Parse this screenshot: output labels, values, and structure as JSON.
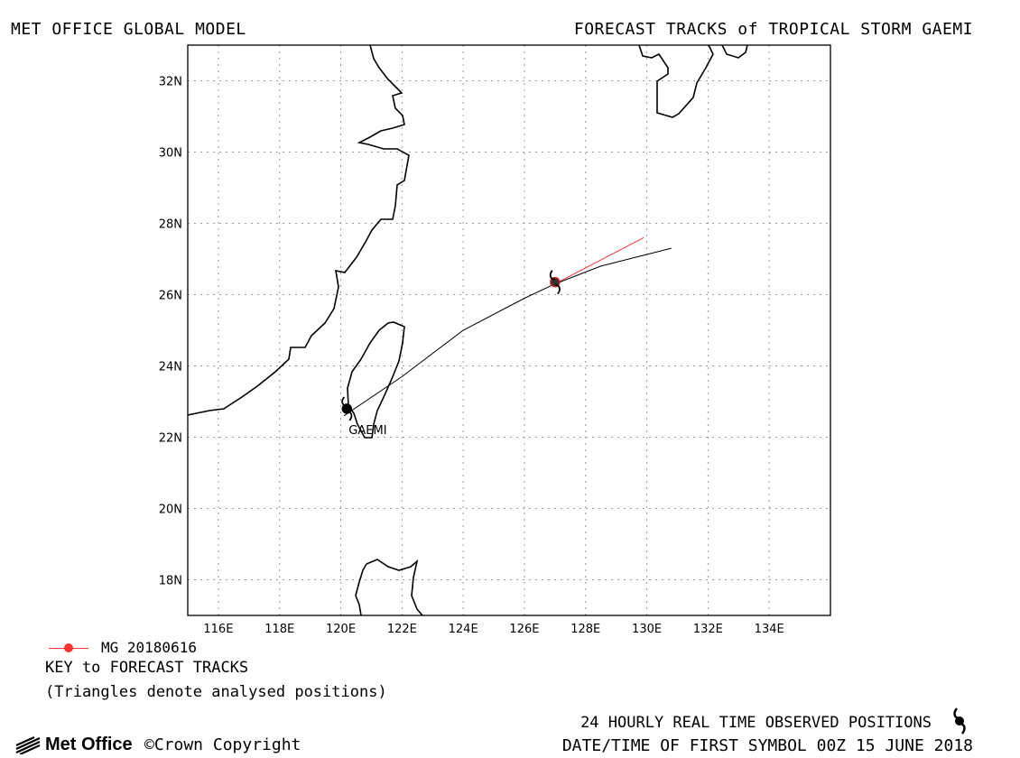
{
  "header": {
    "left_title": "MET OFFICE GLOBAL MODEL",
    "right_title": "FORECAST TRACKS of TROPICAL STORM GAEMI"
  },
  "map": {
    "lon_range": [
      115,
      136
    ],
    "lat_range": [
      17,
      33
    ],
    "lon_ticks": [
      116,
      118,
      120,
      122,
      124,
      126,
      128,
      130,
      132,
      134
    ],
    "lon_tick_labels": [
      "116E",
      "118E",
      "120E",
      "122E",
      "124E",
      "126E",
      "128E",
      "130E",
      "132E",
      "134E"
    ],
    "lat_ticks": [
      18,
      20,
      22,
      24,
      26,
      28,
      30,
      32
    ],
    "lat_tick_labels": [
      "18N",
      "20N",
      "22N",
      "24N",
      "26N",
      "28N",
      "30N",
      "32N"
    ],
    "grid": "dotted",
    "storm_label": "GAEMI"
  },
  "chart_data": {
    "type": "map-tracks",
    "tracks": [
      {
        "name": "MG 20180616",
        "color": "#ff3333",
        "points": [
          [
            127.0,
            26.3
          ],
          [
            129.9,
            27.6
          ]
        ]
      },
      {
        "name": "",
        "color": "#000000",
        "points": [
          [
            120.1,
            22.6
          ],
          [
            122.0,
            23.7
          ],
          [
            124.0,
            25.0
          ],
          [
            126.0,
            25.9
          ],
          [
            127.0,
            26.3
          ],
          [
            128.5,
            26.8
          ],
          [
            130.8,
            27.3
          ]
        ]
      }
    ],
    "observed_positions": [
      [
        120.2,
        22.8
      ],
      [
        127.0,
        26.35
      ]
    ]
  },
  "legend": {
    "entries": [
      {
        "label": "MG 20180616",
        "color": "#ff3333"
      }
    ],
    "key_title": "KEY to FORECAST TRACKS",
    "key_note": "(Triangles denote analysed positions)"
  },
  "footer": {
    "logo_text": "Met Office",
    "copyright": "©Crown Copyright",
    "observed_label": "24 HOURLY REAL TIME OBSERVED POSITIONS",
    "first_symbol": "DATE/TIME OF FIRST SYMBOL 00Z 15 JUNE 2018"
  },
  "icons": {
    "observed_symbol": "tropical-cyclone-icon",
    "logo": "met-office-logo-icon"
  }
}
